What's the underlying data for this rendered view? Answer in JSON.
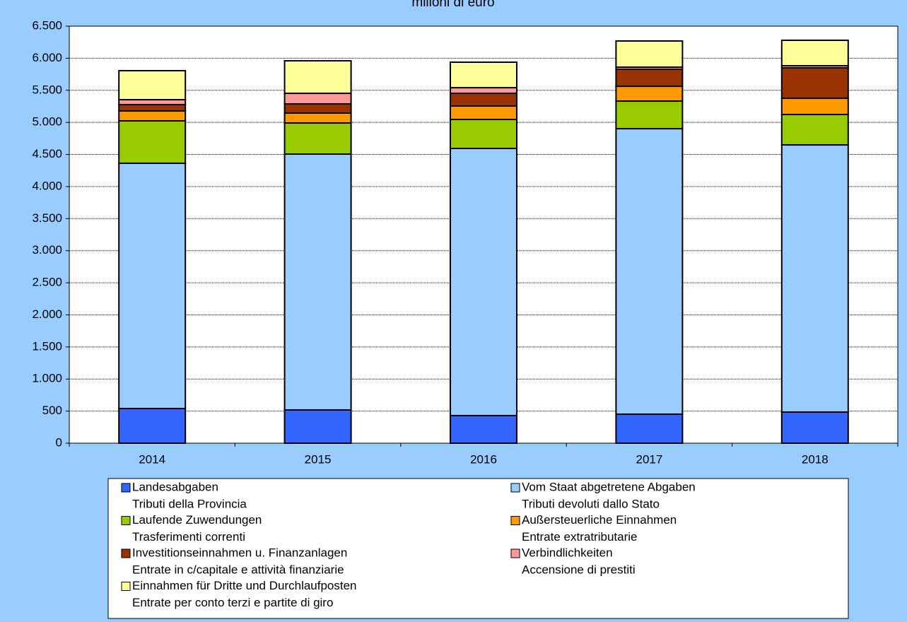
{
  "chart_data": {
    "type": "stacked_bar",
    "title": "milioni di euro",
    "categories": [
      "2014",
      "2015",
      "2016",
      "2017",
      "2018"
    ],
    "series": [
      {
        "name": "Landesabgaben",
        "name_secondary": "Tributi della Provincia",
        "color": "#3366ff",
        "values": [
          540,
          518,
          430,
          452,
          485
        ]
      },
      {
        "name": "Vom Staat abgetretene Abgaben",
        "name_secondary": "Tributi devoluti dallo Stato",
        "color": "#99ccff",
        "values": [
          3823,
          3988,
          4164,
          4450,
          4164
        ]
      },
      {
        "name": "Laufende Zuwendungen",
        "name_secondary": "Trasferimenti correnti",
        "color": "#99cc00",
        "values": [
          661,
          485,
          452,
          430,
          474
        ]
      },
      {
        "name": "Außersteuerliche Einnahmen",
        "name_secondary": "Entrate extratributarie",
        "color": "#ff9900",
        "values": [
          154,
          154,
          209,
          231,
          253
        ]
      },
      {
        "name": "Investitionseinnahmen u. Finanzanlagen",
        "name_secondary": "Entrate in c/capitale e attività finanziarie",
        "color": "#993300",
        "values": [
          99,
          143,
          198,
          265,
          474
        ]
      },
      {
        "name": "Verbindlichkeiten",
        "name_secondary": "Accensione di prestiti",
        "color": "#ff9999",
        "values": [
          77,
          165,
          88,
          33,
          33
        ]
      },
      {
        "name": "Einnahmen für Dritte und Durchlaufposten",
        "name_secondary": "Entrate per conto terzi e partite di giro",
        "color": "#ffff99",
        "values": [
          452,
          507,
          397,
          408,
          397
        ]
      }
    ],
    "ylim": [
      0,
      6500
    ],
    "yticks": [
      0,
      500,
      {
        "value": 1000,
        "label": "1.000"
      },
      {
        "value": 1500,
        "label": "1.500"
      },
      {
        "value": 2000,
        "label": "2.000"
      },
      {
        "value": 2500,
        "label": "2.500"
      },
      {
        "value": 3000,
        "label": "3.000"
      },
      {
        "value": 3500,
        "label": "3.500"
      },
      {
        "value": 4000,
        "label": "4.000"
      },
      {
        "value": 4500,
        "label": "4.500"
      },
      {
        "value": 5000,
        "label": "5.000"
      },
      {
        "value": 5500,
        "label": "5.500"
      },
      {
        "value": 6000,
        "label": "6.000"
      },
      {
        "value": 6500,
        "label": "6.500"
      }
    ],
    "grid": true,
    "legend": "bottom"
  }
}
